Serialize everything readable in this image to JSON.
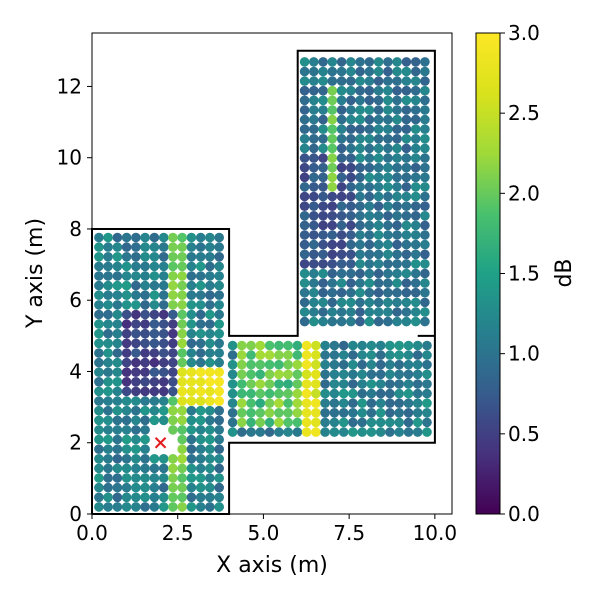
{
  "chart_data": {
    "type": "scatter",
    "xlabel": "X axis (m)",
    "ylabel": "Y axis (m)",
    "xlim": [
      0,
      10.5
    ],
    "ylim": [
      0,
      13.5
    ],
    "xticks": [
      "0.0",
      "2.5",
      "5.0",
      "7.5",
      "10.0"
    ],
    "xtick_values": [
      0,
      2.5,
      5,
      7.5,
      10
    ],
    "yticks": [
      "0",
      "2",
      "4",
      "6",
      "8",
      "10",
      "12"
    ],
    "ytick_values": [
      0,
      2,
      4,
      6,
      8,
      10,
      12
    ],
    "colorbar": {
      "label": "dB",
      "colormap": "viridis",
      "min": 0.0,
      "max": 3.0,
      "ticks": [
        "0.0",
        "0.5",
        "1.0",
        "1.5",
        "2.0",
        "2.5",
        "3.0"
      ],
      "tick_values": [
        0,
        0.5,
        1,
        1.5,
        2,
        2.5,
        3
      ]
    },
    "marker": {
      "label": "source",
      "symbol": "x",
      "color": "#e41a1c",
      "x": 2.0,
      "y": 2.0
    },
    "room_outline": [
      [
        0,
        0
      ],
      [
        4,
        0
      ],
      [
        4,
        2
      ],
      [
        10,
        2
      ],
      [
        10,
        5
      ],
      [
        9.5,
        5
      ],
      [
        10,
        5
      ],
      [
        10,
        13
      ],
      [
        6,
        13
      ],
      [
        6,
        5
      ],
      [
        4,
        5
      ],
      [
        4,
        8
      ],
      [
        0,
        8
      ],
      [
        0,
        0
      ]
    ],
    "point_grid": {
      "spacing": 0.27,
      "regions": [
        {
          "name": "lower-left room",
          "x": [
            0.2,
            3.9
          ],
          "y": [
            0.2,
            7.8
          ]
        },
        {
          "name": "corridor",
          "x": [
            4.1,
            9.9
          ],
          "y": [
            2.3,
            4.8
          ]
        },
        {
          "name": "upper-right room",
          "x": [
            6.2,
            9.8
          ],
          "y": [
            5.4,
            12.8
          ]
        }
      ]
    }
  },
  "colors": {
    "outline": "#000000",
    "marker": "#e41a1c"
  }
}
